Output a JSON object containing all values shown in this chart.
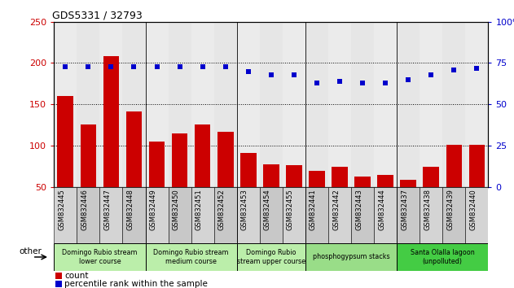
{
  "title": "GDS5331 / 32793",
  "samples": [
    "GSM832445",
    "GSM832446",
    "GSM832447",
    "GSM832448",
    "GSM832449",
    "GSM832450",
    "GSM832451",
    "GSM832452",
    "GSM832453",
    "GSM832454",
    "GSM832455",
    "GSM832441",
    "GSM832442",
    "GSM832443",
    "GSM832444",
    "GSM832437",
    "GSM832438",
    "GSM832439",
    "GSM832440"
  ],
  "counts": [
    160,
    126,
    208,
    141,
    105,
    115,
    126,
    117,
    91,
    78,
    77,
    70,
    75,
    63,
    65,
    59,
    75,
    101,
    101
  ],
  "percentiles": [
    73,
    73,
    73,
    73,
    73,
    73,
    73,
    73,
    70,
    68,
    68,
    63,
    64,
    63,
    63,
    65,
    68,
    71,
    72
  ],
  "bar_color": "#cc0000",
  "dot_color": "#0000cc",
  "ylim_left": [
    50,
    250
  ],
  "ylim_right": [
    0,
    100
  ],
  "yticks_left": [
    50,
    100,
    150,
    200,
    250
  ],
  "yticks_right": [
    0,
    25,
    50,
    75,
    100
  ],
  "groups": [
    {
      "label": "Domingo Rubio stream\nlower course",
      "start": 0,
      "end": 4,
      "color": "#bbeeaa"
    },
    {
      "label": "Domingo Rubio stream\nmedium course",
      "start": 4,
      "end": 8,
      "color": "#bbeeaa"
    },
    {
      "label": "Domingo Rubio\nstream upper course",
      "start": 8,
      "end": 11,
      "color": "#bbeeaa"
    },
    {
      "label": "phosphogypsum stacks",
      "start": 11,
      "end": 15,
      "color": "#99dd88"
    },
    {
      "label": "Santa Olalla lagoon\n(unpolluted)",
      "start": 15,
      "end": 19,
      "color": "#44cc44"
    }
  ],
  "legend_count_label": "count",
  "legend_pct_label": "percentile rank within the sample",
  "other_label": "other",
  "bar_col_color": "#d4d4d4",
  "bar_col_color2": "#c8c8c8"
}
